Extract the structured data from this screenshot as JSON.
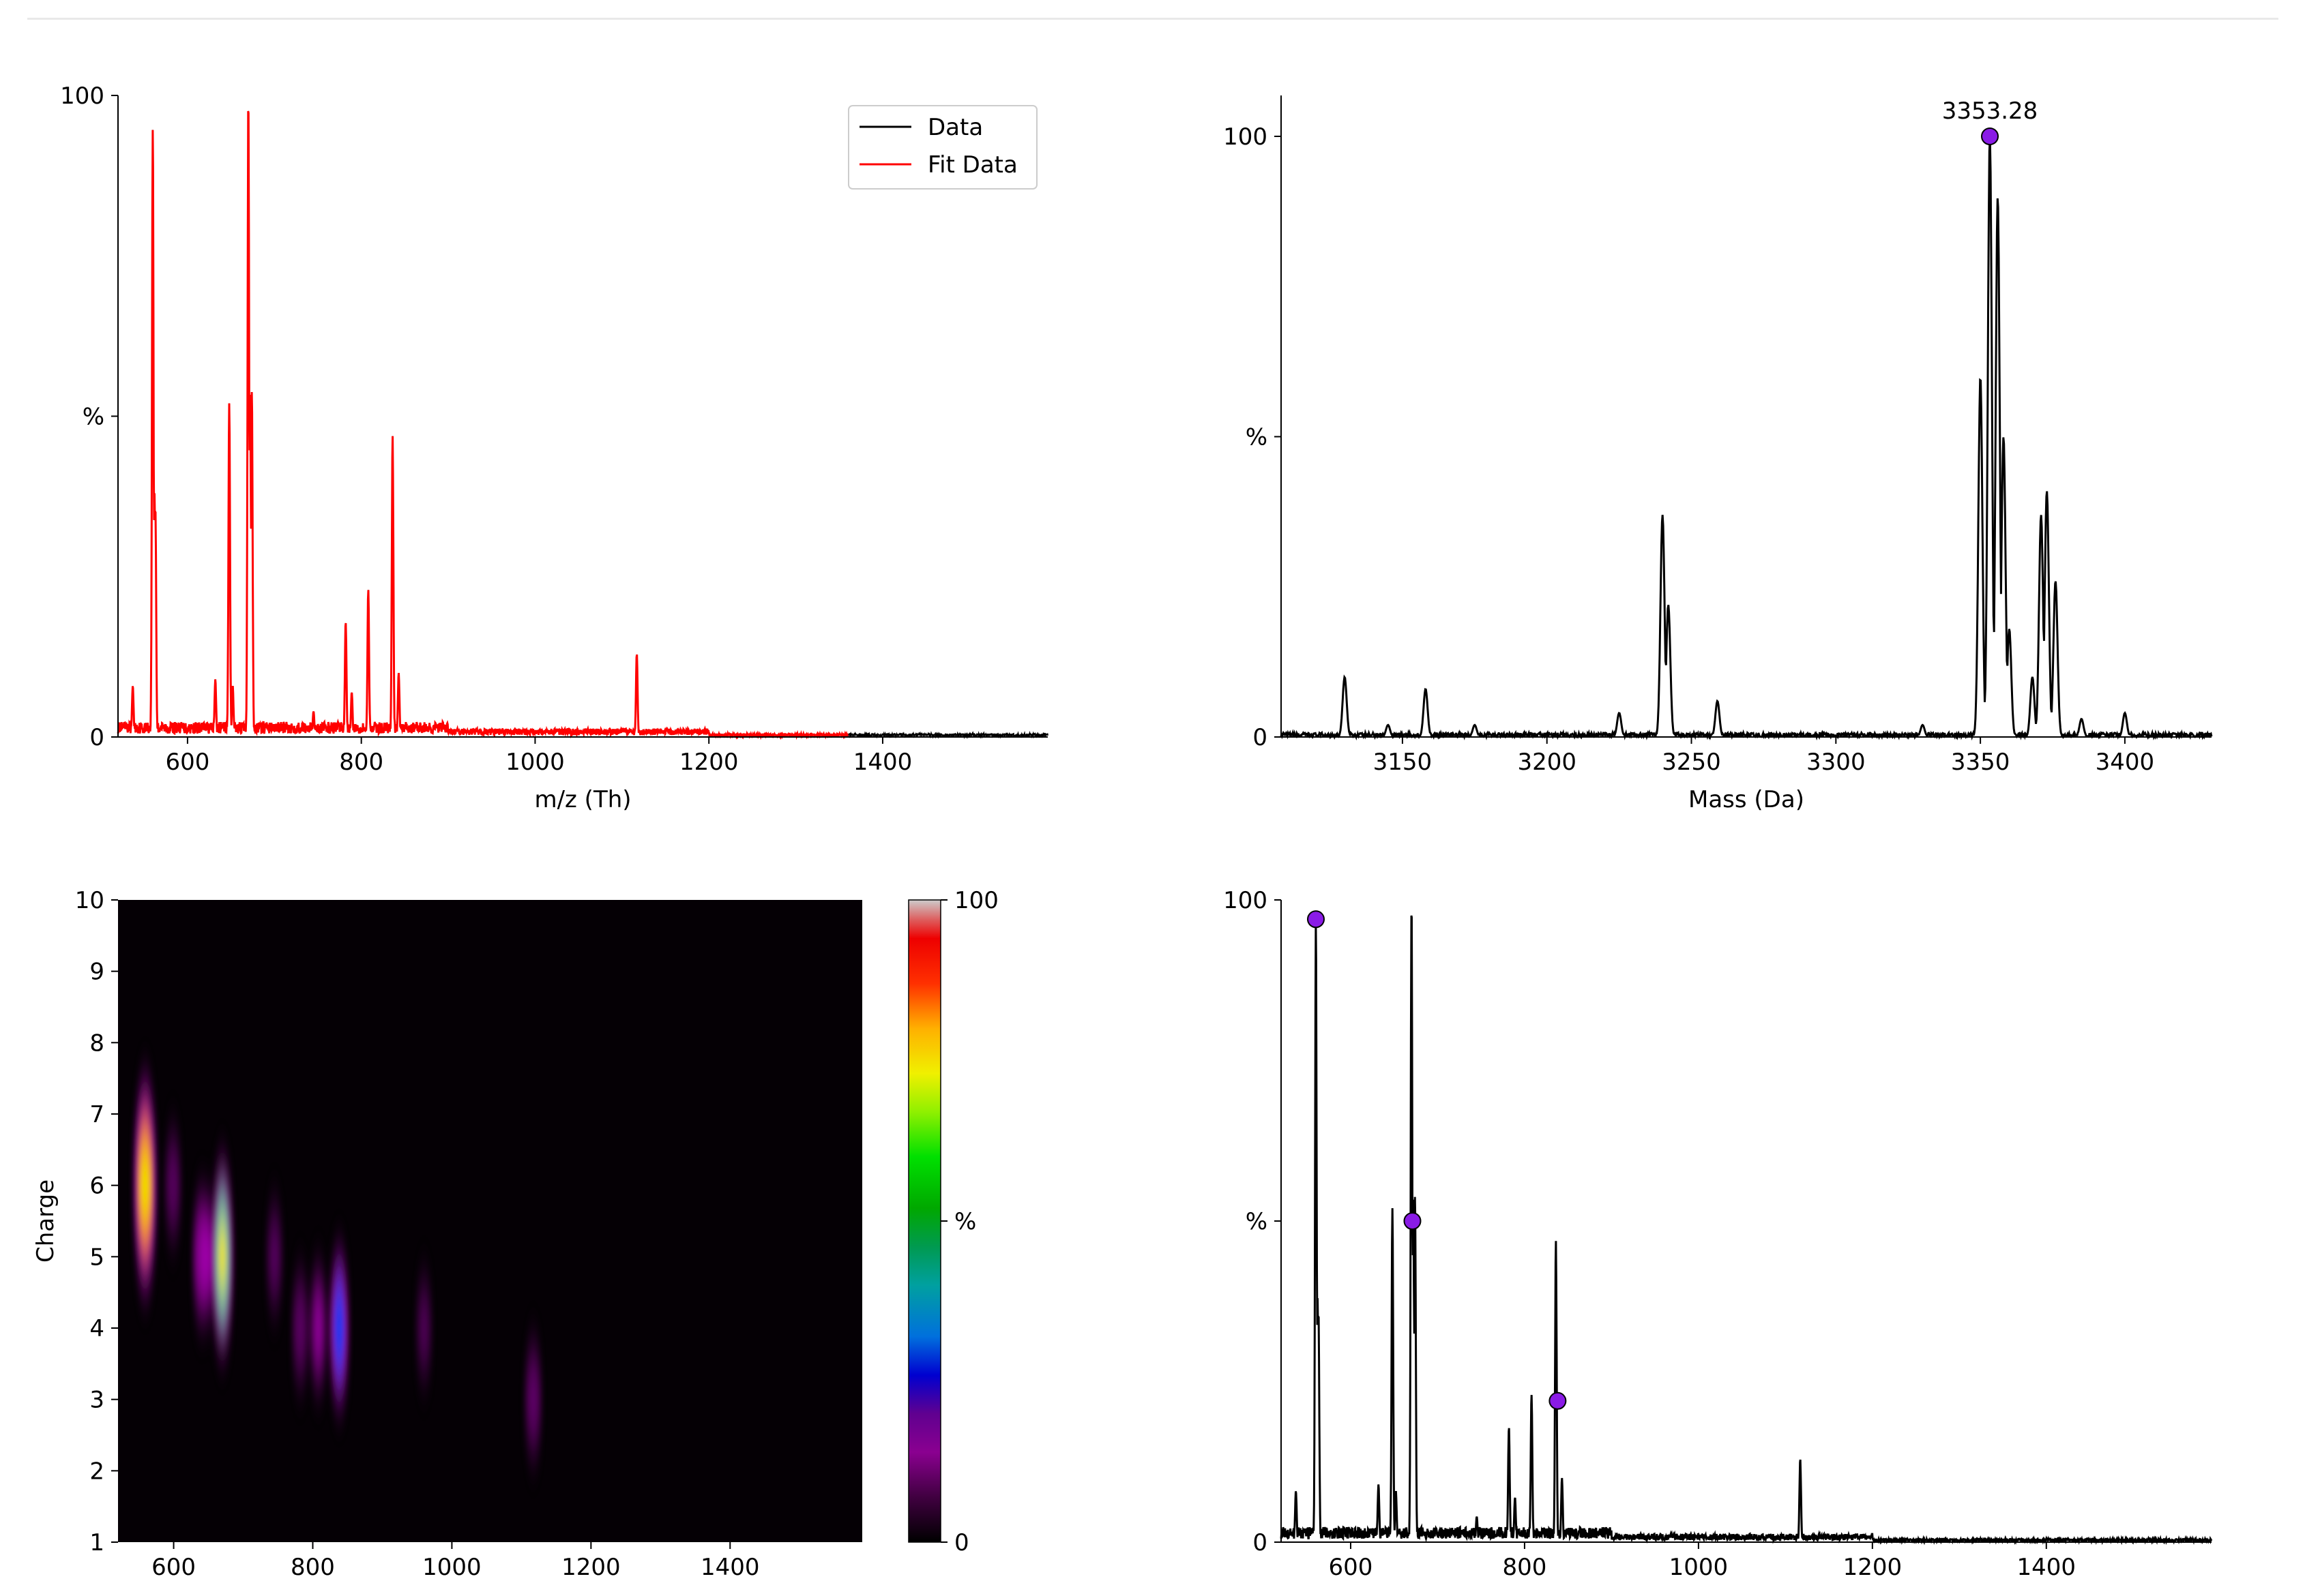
{
  "chart_data": [
    {
      "id": "mz-spectrum",
      "type": "line",
      "title": "",
      "xlabel": "m/z (Th)",
      "ylabel": "%",
      "xlim": [
        520,
        1590
      ],
      "ylim": [
        0,
        100
      ],
      "xticks": [
        600,
        800,
        1000,
        1200,
        1400
      ],
      "yticks": [
        {
          "value": 0,
          "label": "0"
        },
        {
          "value": 50,
          "label": "%"
        },
        {
          "value": 100,
          "label": "100"
        }
      ],
      "grid": false,
      "legend": "top-right",
      "series": [
        {
          "name": "Data",
          "color": "#000000"
        },
        {
          "name": "Fit Data",
          "color": "#ff0000"
        }
      ],
      "peaks": [
        [
          537,
          8
        ],
        [
          560,
          95
        ],
        [
          562,
          38
        ],
        [
          563,
          36
        ],
        [
          632,
          9
        ],
        [
          648,
          52
        ],
        [
          652,
          8
        ],
        [
          670,
          100
        ],
        [
          672,
          54
        ],
        [
          674,
          54
        ],
        [
          745,
          4
        ],
        [
          782,
          18
        ],
        [
          789,
          7
        ],
        [
          808,
          23
        ],
        [
          836,
          47
        ],
        [
          843,
          10
        ],
        [
          1117,
          13
        ]
      ]
    },
    {
      "id": "mass-spectrum",
      "type": "line",
      "title": "",
      "xlabel": "Mass (Da)",
      "ylabel": "%",
      "xlim": [
        3108,
        3430
      ],
      "ylim": [
        0,
        100
      ],
      "xticks": [
        3150,
        3200,
        3250,
        3300,
        3350,
        3400
      ],
      "yticks": [
        {
          "value": 0,
          "label": "0"
        },
        {
          "value": 50,
          "label": "%"
        },
        {
          "value": 100,
          "label": "100"
        }
      ],
      "grid": false,
      "series": [
        {
          "name": "",
          "color": "#000000"
        }
      ],
      "peaks": [
        [
          3130,
          10
        ],
        [
          3145,
          2
        ],
        [
          3158,
          8
        ],
        [
          3175,
          2
        ],
        [
          3225,
          4
        ],
        [
          3240,
          37
        ],
        [
          3242,
          22
        ],
        [
          3259,
          6
        ],
        [
          3330,
          2
        ],
        [
          3350,
          60
        ],
        [
          3353.28,
          100
        ],
        [
          3356,
          90
        ],
        [
          3358,
          50
        ],
        [
          3360,
          18
        ],
        [
          3368,
          10
        ],
        [
          3371,
          37
        ],
        [
          3373,
          41
        ],
        [
          3376,
          26
        ],
        [
          3385,
          3
        ],
        [
          3400,
          4
        ]
      ],
      "marked_peak": {
        "x": 3353.28,
        "y": 100,
        "label": "3353.28",
        "color": "#8a1be6"
      }
    },
    {
      "id": "charge-heatmap",
      "type": "heatmap",
      "title": "",
      "xlabel": "",
      "ylabel": "Charge",
      "xlim": [
        520,
        1590
      ],
      "ylim": [
        1,
        10
      ],
      "xticks": [
        600,
        800,
        1000,
        1200,
        1400
      ],
      "yticks": [
        1,
        2,
        3,
        4,
        5,
        6,
        7,
        8,
        9,
        10
      ],
      "colorbar": {
        "min_label": "0",
        "mid_label": "%",
        "max_label": "100"
      },
      "blobs": [
        {
          "x": 559,
          "z": 6,
          "value": 100
        },
        {
          "x": 670,
          "z": 5,
          "value": 80
        },
        {
          "x": 640,
          "z": 5,
          "value": 25
        },
        {
          "x": 648,
          "z": 5,
          "value": 20
        },
        {
          "x": 599,
          "z": 6,
          "value": 8
        },
        {
          "x": 808,
          "z": 4,
          "value": 18
        },
        {
          "x": 838,
          "z": 4,
          "value": 45
        },
        {
          "x": 782,
          "z": 4,
          "value": 10
        },
        {
          "x": 745,
          "z": 5,
          "value": 6
        },
        {
          "x": 1117,
          "z": 3,
          "value": 12
        },
        {
          "x": 960,
          "z": 4,
          "value": 3
        }
      ]
    },
    {
      "id": "peak-spectrum",
      "type": "line",
      "title": "",
      "xlabel": "",
      "ylabel": "%",
      "xlim": [
        520,
        1590
      ],
      "ylim": [
        0,
        100
      ],
      "xticks": [
        600,
        800,
        1000,
        1200,
        1400
      ],
      "yticks": [
        {
          "value": 0,
          "label": "0"
        },
        {
          "value": 50,
          "label": "%"
        },
        {
          "value": 100,
          "label": "100"
        }
      ],
      "grid": false,
      "series": [
        {
          "name": "",
          "color": "#000000"
        }
      ],
      "peaks": [
        [
          537,
          8
        ],
        [
          560,
          97
        ],
        [
          562,
          38
        ],
        [
          563,
          36
        ],
        [
          632,
          9
        ],
        [
          648,
          52
        ],
        [
          652,
          8
        ],
        [
          670,
          100
        ],
        [
          672,
          54
        ],
        [
          674,
          54
        ],
        [
          745,
          4
        ],
        [
          782,
          18
        ],
        [
          789,
          7
        ],
        [
          808,
          23
        ],
        [
          836,
          47
        ],
        [
          843,
          10
        ],
        [
          1117,
          13
        ]
      ],
      "markers": [
        {
          "x": 560,
          "y": 97,
          "color": "#8a1be6"
        },
        {
          "x": 671,
          "y": 50,
          "color": "#8a1be6"
        },
        {
          "x": 838,
          "y": 22,
          "color": "#8a1be6"
        }
      ]
    }
  ]
}
